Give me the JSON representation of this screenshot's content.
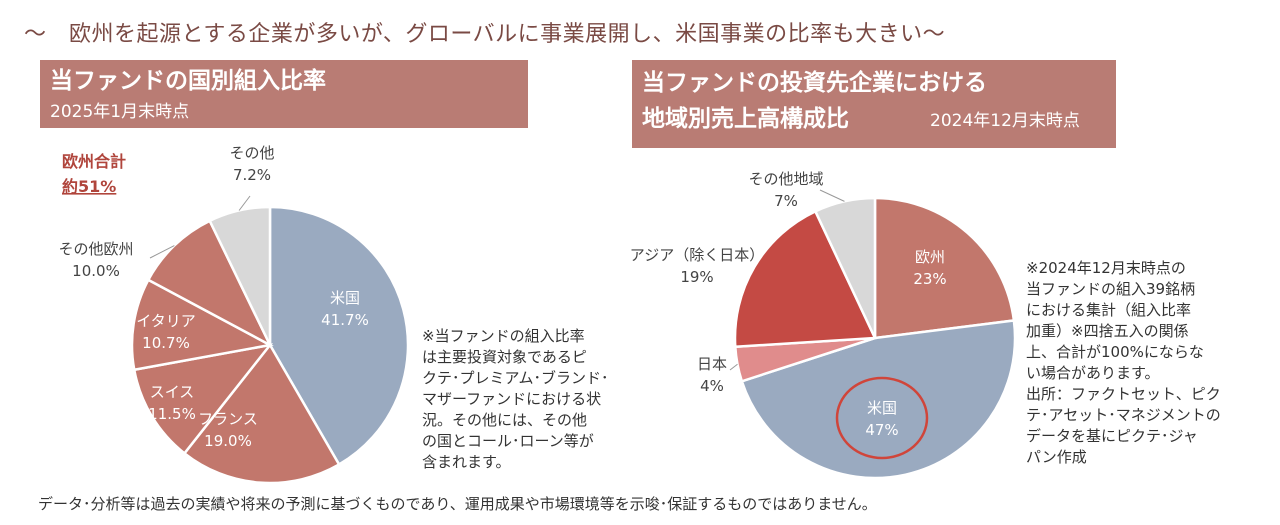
{
  "headline": "～　欧州を起源とする企業が多いが、グローバルに事業展開し、米国事業の比率も大きい～",
  "left_panel": {
    "title": "当ファンドの国別組入比率",
    "subtitle": "2025年1月末時点",
    "europe_total_label": "欧州合計",
    "europe_total_value": "約51%",
    "note_lines": [
      "※当ファンドの組入比率",
      "は主要投資対象であるピ",
      "クテ･プレミアム･ブランド･",
      "マザーファンドにおける状",
      "況。その他には、その他",
      "の国とコール･ローン等が",
      "含まれます。"
    ]
  },
  "right_panel": {
    "title_line1": "当ファンドの投資先企業における",
    "title_line2": "地域別売上高構成比",
    "subtitle": "2024年12月末時点",
    "note_lines": [
      "※2024年12月末時点の",
      "当ファンドの組入39銘柄",
      "における集計（組入比率",
      "加重）※四捨五入の関係",
      "上、合計が100%にならな",
      "い場合があります。",
      "出所：ファクトセット、ピク",
      "テ･アセット･マネジメントの",
      "データを基にピクテ･ジャ",
      "パン作成"
    ]
  },
  "footer": "データ･分析等は過去の実績や将来の予測に基づくものであり、運用成果や市場環境等を示唆･保証するものではありません。",
  "colors": {
    "usa": "#9aaac0",
    "europe": "#c2776c",
    "asia": "#c44a44",
    "japan": "#e08c8c",
    "other": "#d8d8d8",
    "band": "#b97c74",
    "highlight": "#d0453a"
  },
  "chart_data": [
    {
      "type": "pie",
      "title": "当ファンドの国別組入比率",
      "slices": [
        {
          "name": "米国",
          "value": 41.7,
          "label": "41.7%",
          "color": "#9aaac0"
        },
        {
          "name": "フランス",
          "value": 19.0,
          "label": "19.0%",
          "color": "#c2776c"
        },
        {
          "name": "スイス",
          "value": 11.5,
          "label": "11.5%",
          "color": "#c2776c"
        },
        {
          "name": "イタリア",
          "value": 10.7,
          "label": "10.7%",
          "color": "#c2776c"
        },
        {
          "name": "その他欧州",
          "value": 10.0,
          "label": "10.0%",
          "color": "#c2776c"
        },
        {
          "name": "その他",
          "value": 7.2,
          "label": "7.2%",
          "color": "#d8d8d8"
        }
      ]
    },
    {
      "type": "pie",
      "title": "地域別売上高構成比",
      "slices": [
        {
          "name": "欧州",
          "value": 23,
          "label": "23%",
          "color": "#c2776c"
        },
        {
          "name": "米国",
          "value": 47,
          "label": "47%",
          "color": "#9aaac0"
        },
        {
          "name": "日本",
          "value": 4,
          "label": "4%",
          "color": "#e08c8c"
        },
        {
          "name": "アジア（除く日本）",
          "value": 19,
          "label": "19%",
          "color": "#c44a44"
        },
        {
          "name": "その他地域",
          "value": 7,
          "label": "7%",
          "color": "#d8d8d8"
        }
      ]
    }
  ]
}
